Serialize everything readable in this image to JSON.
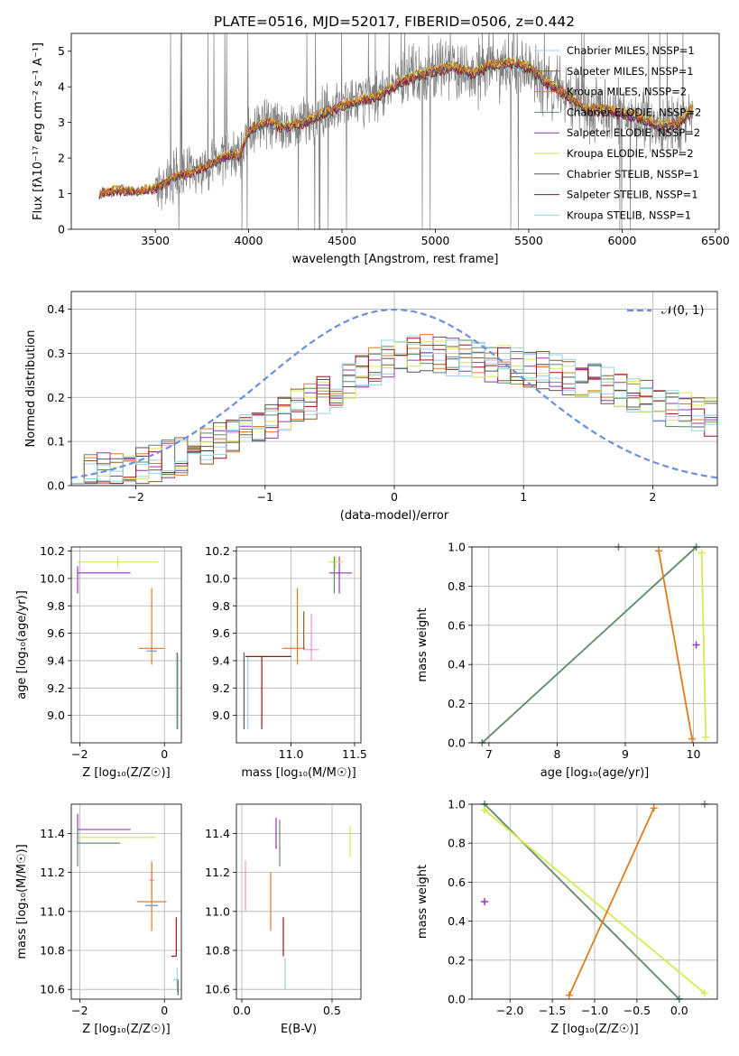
{
  "figure_title": "PLATE=0516, MJD=52017, FIBERID=0506, z=0.442",
  "colors": {
    "chabrier_miles": "#a1c9f4",
    "salpeter_miles": "#8c5a2a",
    "kroupa_miles": "#e07b1c",
    "chabrier_elodie": "#5d8a68",
    "salpeter_elodie": "#9b30c0",
    "kroupa_elodie": "#d6ea50",
    "chabrier_stelib": "#555555",
    "salpeter_stelib": "#a01018",
    "kroupa_stelib": "#8fd7dd",
    "data": "#808080",
    "normal": "#6a8fdc",
    "pink": "#f48fc4",
    "blue": "#6b8fd6"
  },
  "chart_data": [
    {
      "id": "spectrum",
      "type": "line",
      "xlabel": "wavelength [Angstrom, rest frame]",
      "ylabel": "Flux [fλ10⁻¹⁷ erg cm⁻² s⁻¹ A⁻¹]",
      "xlim": [
        3050,
        6520
      ],
      "ylim": [
        0,
        5.5
      ],
      "xticks": [
        "3500",
        "4000",
        "4500",
        "5000",
        "5500",
        "6000",
        "6500"
      ],
      "yticks": [
        "0",
        "1",
        "2",
        "3",
        "4",
        "5"
      ],
      "grid": false,
      "legend_position": "top-right",
      "legend": [
        "Chabrier MILES, N_SSP=1",
        "Salpeter MILES, N_SSP=1",
        "Kroupa MILES, N_SSP=2",
        "Chabrier ELODIE, N_SSP=2",
        "Salpeter ELODIE, N_SSP=2",
        "Kroupa ELODIE, N_SSP=2",
        "Chabrier STELIB, N_SSP=1",
        "Salpeter STELIB, N_SSP=1",
        "Kroupa STELIB, N_SSP=1"
      ],
      "continuum": [
        [
          3200,
          1.0
        ],
        [
          3300,
          1.1
        ],
        [
          3400,
          1.05
        ],
        [
          3500,
          1.15
        ],
        [
          3600,
          1.45
        ],
        [
          3700,
          1.6
        ],
        [
          3800,
          1.85
        ],
        [
          3900,
          2.1
        ],
        [
          3950,
          2.05
        ],
        [
          4000,
          2.75
        ],
        [
          4100,
          3.0
        ],
        [
          4200,
          2.85
        ],
        [
          4300,
          3.0
        ],
        [
          4400,
          3.25
        ],
        [
          4500,
          3.45
        ],
        [
          4600,
          3.6
        ],
        [
          4700,
          3.75
        ],
        [
          4800,
          4.1
        ],
        [
          4900,
          4.3
        ],
        [
          5000,
          4.45
        ],
        [
          5100,
          4.55
        ],
        [
          5200,
          4.35
        ],
        [
          5300,
          4.6
        ],
        [
          5400,
          4.65
        ],
        [
          5500,
          4.55
        ],
        [
          5600,
          4.1
        ],
        [
          5700,
          3.8
        ],
        [
          5800,
          3.35
        ],
        [
          5900,
          3.35
        ],
        [
          6000,
          3.25
        ],
        [
          6100,
          3.1
        ],
        [
          6200,
          2.9
        ],
        [
          6300,
          2.95
        ],
        [
          6380,
          3.4
        ]
      ]
    },
    {
      "id": "residuals",
      "type": "line",
      "xlabel": "(data-model)/error",
      "ylabel": "Normed distribution",
      "xlim": [
        -2.5,
        2.5
      ],
      "ylim": [
        0,
        0.44
      ],
      "xticks": [
        "−2",
        "−1",
        "0",
        "1",
        "2"
      ],
      "yticks": [
        "0.0",
        "0.1",
        "0.2",
        "0.3",
        "0.4"
      ],
      "grid": true,
      "legend_position": "top-right",
      "legend": [
        "𝒩(0, 1)"
      ],
      "normal_curve": {
        "mean": 0,
        "sigma": 1
      },
      "histogram_bin_width": 0.1,
      "histogram_envelope": [
        [
          -2.5,
          0.02
        ],
        [
          -2.0,
          0.04
        ],
        [
          -1.5,
          0.08
        ],
        [
          -1.0,
          0.14
        ],
        [
          -0.5,
          0.21
        ],
        [
          0.0,
          0.3
        ],
        [
          0.3,
          0.3
        ],
        [
          0.5,
          0.29
        ],
        [
          1.0,
          0.27
        ],
        [
          1.5,
          0.24
        ],
        [
          2.0,
          0.19
        ],
        [
          2.5,
          0.15
        ]
      ]
    },
    {
      "id": "age_vs_Z",
      "type": "scatter",
      "xlabel": "Z [log₁₀(Z/Z☉)]",
      "ylabel": "age  [log₁₀(age/yr)]",
      "xlim": [
        -2.2,
        0.4
      ],
      "ylim": [
        8.8,
        10.23
      ],
      "xticks": [
        "−2",
        "0"
      ],
      "yticks": [
        "9.0",
        "9.2",
        "9.4",
        "9.6",
        "9.8",
        "10.0",
        "10.2"
      ],
      "grid": true,
      "points": [
        {
          "x": -2.05,
          "y": 10.04,
          "xerr": [
            0,
            1.25
          ],
          "yerr": [
            0.15,
            0.05
          ],
          "series": "salpeter_elodie"
        },
        {
          "x": -1.1,
          "y": 10.12,
          "xerr": [
            0.95,
            0.95
          ],
          "yerr": [
            0.04,
            0.04
          ],
          "series": "kroupa_elodie"
        },
        {
          "x": -0.85,
          "y": 10.04,
          "xerr": [
            0,
            0
          ],
          "yerr": [
            0,
            0
          ],
          "series": "chabrier_elodie"
        },
        {
          "x": -0.3,
          "y": 9.49,
          "xerr": [
            0.3,
            0.3
          ],
          "yerr": [
            0.12,
            0.44
          ],
          "series": "kroupa_miles"
        },
        {
          "x": -0.3,
          "y": 9.47,
          "xerr": [
            0.12,
            0.12
          ],
          "yerr": [
            0,
            0
          ],
          "series": "blue"
        },
        {
          "x": 0.3,
          "y": 9.4,
          "xerr": [
            0,
            0
          ],
          "yerr": [
            0.5,
            0.06
          ],
          "series": "chabrier_stelib"
        },
        {
          "x": 0.32,
          "y": 9.42,
          "xerr": [
            0,
            0
          ],
          "yerr": [
            0.52,
            0.02
          ],
          "series": "kroupa_stelib"
        }
      ]
    },
    {
      "id": "age_vs_mass",
      "type": "scatter",
      "xlabel": "mass [log₁₀(M/M☉)]",
      "ylabel": "",
      "xlim": [
        10.57,
        11.55
      ],
      "ylim": [
        8.8,
        10.23
      ],
      "xticks": [
        "11.0",
        "11.5"
      ],
      "yticks": [
        "9.0",
        "9.2",
        "9.4",
        "9.6",
        "9.8",
        "10.0",
        "10.2"
      ],
      "grid": true,
      "points": [
        {
          "x": 10.63,
          "y": 9.46,
          "xerr": [
            0,
            0
          ],
          "yerr": [
            0.56,
            0
          ],
          "series": "chabrier_stelib"
        },
        {
          "x": 10.66,
          "y": 9.43,
          "xerr": [
            0,
            0
          ],
          "yerr": [
            0.53,
            0
          ],
          "series": "kroupa_stelib"
        },
        {
          "x": 10.77,
          "y": 9.43,
          "xerr": [
            0.13,
            0.23
          ],
          "yerr": [
            0.53,
            0
          ],
          "series": "salpeter_stelib"
        },
        {
          "x": 11.05,
          "y": 9.49,
          "xerr": [
            0.12,
            0.06
          ],
          "yerr": [
            0.12,
            0.44
          ],
          "series": "kroupa_miles"
        },
        {
          "x": 11.1,
          "y": 9.62,
          "xerr": [
            0,
            0
          ],
          "yerr": [
            0.14,
            0.14
          ],
          "series": "salpeter_miles"
        },
        {
          "x": 11.16,
          "y": 9.48,
          "xerr": [
            0.06,
            0.06
          ],
          "yerr": [
            0.08,
            0.26
          ],
          "series": "pink"
        },
        {
          "x": 11.38,
          "y": 10.04,
          "xerr": [
            0.08,
            0.1
          ],
          "yerr": [
            0.15,
            0.12
          ],
          "series": "salpeter_elodie"
        },
        {
          "x": 11.35,
          "y": 10.12,
          "xerr": [
            0.06,
            0.06
          ],
          "yerr": [
            0.05,
            0.05
          ],
          "series": "kroupa_elodie"
        },
        {
          "x": 11.34,
          "y": 10.04,
          "xerr": [
            0,
            0
          ],
          "yerr": [
            0.15,
            0.12
          ],
          "series": "chabrier_elodie"
        }
      ]
    },
    {
      "id": "mass_weight_vs_age",
      "type": "line",
      "xlabel": "age  [log₁₀(age/yr)]",
      "ylabel": "mass weight",
      "xlim": [
        6.75,
        10.35
      ],
      "ylim": [
        0,
        1
      ],
      "xticks": [
        "7",
        "8",
        "9",
        "10"
      ],
      "yticks": [
        "0.0",
        "0.2",
        "0.4",
        "0.6",
        "0.8",
        "1.0"
      ],
      "grid": true,
      "series": [
        {
          "name": "",
          "color_key": "chabrier_elodie",
          "points": [
            [
              6.9,
              0
            ],
            [
              10.04,
              1.0
            ]
          ]
        },
        {
          "name": "",
          "color_key": "kroupa_miles",
          "points": [
            [
              9.49,
              0.98
            ],
            [
              9.98,
              0.02
            ]
          ]
        },
        {
          "name": "",
          "color_key": "kroupa_elodie",
          "points": [
            [
              10.12,
              0.97
            ],
            [
              10.18,
              0.03
            ]
          ]
        },
        {
          "name": "",
          "color_key": "salpeter_elodie",
          "points": [
            [
              10.04,
              0.5
            ]
          ]
        },
        {
          "name": "",
          "color_key": "data",
          "points": [
            [
              8.9,
              1.0
            ]
          ]
        }
      ]
    },
    {
      "id": "mass_vs_Z",
      "type": "scatter",
      "xlabel": "Z [log₁₀(Z/Z☉)]",
      "ylabel": "mass [log₁₀(M/M☉)]",
      "xlim": [
        -2.2,
        0.4
      ],
      "ylim": [
        10.55,
        11.55
      ],
      "xticks": [
        "−2",
        "0"
      ],
      "yticks": [
        "10.6",
        "10.8",
        "11.0",
        "11.2",
        "11.4"
      ],
      "grid": true,
      "points": [
        {
          "x": -2.05,
          "y": 11.42,
          "xerr": [
            0,
            1.25
          ],
          "yerr": [
            0.08,
            0.08
          ],
          "series": "salpeter_elodie"
        },
        {
          "x": -2.05,
          "y": 11.38,
          "xerr": [
            0,
            1.85
          ],
          "yerr": [
            0,
            0
          ],
          "series": "kroupa_elodie"
        },
        {
          "x": -2.05,
          "y": 11.35,
          "xerr": [
            0,
            1.0
          ],
          "yerr": [
            0.12,
            0.08
          ],
          "series": "chabrier_elodie"
        },
        {
          "x": -0.3,
          "y": 11.16,
          "xerr": [
            0.06,
            0.06
          ],
          "yerr": [
            0.1,
            0.1
          ],
          "series": "pink"
        },
        {
          "x": -0.3,
          "y": 11.05,
          "xerr": [
            0.35,
            0.35
          ],
          "yerr": [
            0.15,
            0.2
          ],
          "series": "kroupa_miles"
        },
        {
          "x": -0.3,
          "y": 11.03,
          "xerr": [
            0.15,
            0.15
          ],
          "yerr": [
            0,
            0
          ],
          "series": "blue"
        },
        {
          "x": 0.28,
          "y": 10.77,
          "xerr": [
            0.12,
            0
          ],
          "yerr": [
            0,
            0.2
          ],
          "series": "salpeter_stelib"
        },
        {
          "x": 0.3,
          "y": 10.65,
          "xerr": [
            0.1,
            0
          ],
          "yerr": [
            0.06,
            0.06
          ],
          "series": "kroupa_stelib"
        },
        {
          "x": 0.32,
          "y": 10.61,
          "xerr": [
            0,
            0
          ],
          "yerr": [
            0.04,
            0.04
          ],
          "series": "chabrier_stelib"
        }
      ]
    },
    {
      "id": "mass_vs_ebv",
      "type": "scatter",
      "xlabel": "E(B-V)",
      "ylabel": "",
      "xlim": [
        -0.03,
        0.66
      ],
      "ylim": [
        10.55,
        11.55
      ],
      "xticks": [
        "0.0",
        "0.5"
      ],
      "yticks": [
        "10.6",
        "10.8",
        "11.0",
        "11.2",
        "11.4"
      ],
      "grid": true,
      "points": [
        {
          "x": 0.02,
          "y": 11.12,
          "xerr": [
            0,
            0
          ],
          "yerr": [
            0.12,
            0.14
          ],
          "series": "pink"
        },
        {
          "x": 0.16,
          "y": 11.05,
          "xerr": [
            0,
            0
          ],
          "yerr": [
            0.15,
            0.15
          ],
          "series": "kroupa_miles"
        },
        {
          "x": 0.19,
          "y": 11.4,
          "xerr": [
            0,
            0
          ],
          "yerr": [
            0.08,
            0.08
          ],
          "series": "salpeter_elodie"
        },
        {
          "x": 0.21,
          "y": 11.35,
          "xerr": [
            0,
            0
          ],
          "yerr": [
            0.12,
            0.12
          ],
          "series": "chabrier_elodie"
        },
        {
          "x": 0.23,
          "y": 10.87,
          "xerr": [
            0,
            0
          ],
          "yerr": [
            0.1,
            0.1
          ],
          "series": "salpeter_stelib"
        },
        {
          "x": 0.24,
          "y": 10.68,
          "xerr": [
            0,
            0
          ],
          "yerr": [
            0.08,
            0.08
          ],
          "series": "kroupa_stelib"
        },
        {
          "x": 0.6,
          "y": 11.36,
          "xerr": [
            0,
            0
          ],
          "yerr": [
            0.08,
            0.08
          ],
          "series": "kroupa_elodie"
        }
      ]
    },
    {
      "id": "mass_weight_vs_Z",
      "type": "line",
      "xlabel": "Z [log₁₀(Z/Z☉)]",
      "ylabel": "mass weight",
      "xlim": [
        -2.45,
        0.45
      ],
      "ylim": [
        0,
        1
      ],
      "xticks": [
        "−2.0",
        "−1.5",
        "−1.0",
        "−0.5",
        "0.0"
      ],
      "yticks": [
        "0.0",
        "0.2",
        "0.4",
        "0.6",
        "0.8",
        "1.0"
      ],
      "grid": true,
      "series": [
        {
          "name": "",
          "color_key": "chabrier_elodie",
          "points": [
            [
              -2.3,
              1.0
            ],
            [
              0.0,
              0.0
            ]
          ]
        },
        {
          "name": "",
          "color_key": "kroupa_elodie",
          "points": [
            [
              -2.3,
              0.97
            ],
            [
              0.3,
              0.03
            ]
          ]
        },
        {
          "name": "",
          "color_key": "kroupa_miles",
          "points": [
            [
              -1.3,
              0.02
            ],
            [
              -0.3,
              0.98
            ]
          ]
        },
        {
          "name": "",
          "color_key": "salpeter_elodie",
          "points": [
            [
              -2.3,
              0.5
            ]
          ]
        },
        {
          "name": "",
          "color_key": "data",
          "points": [
            [
              0.3,
              1.0
            ]
          ]
        }
      ]
    }
  ]
}
